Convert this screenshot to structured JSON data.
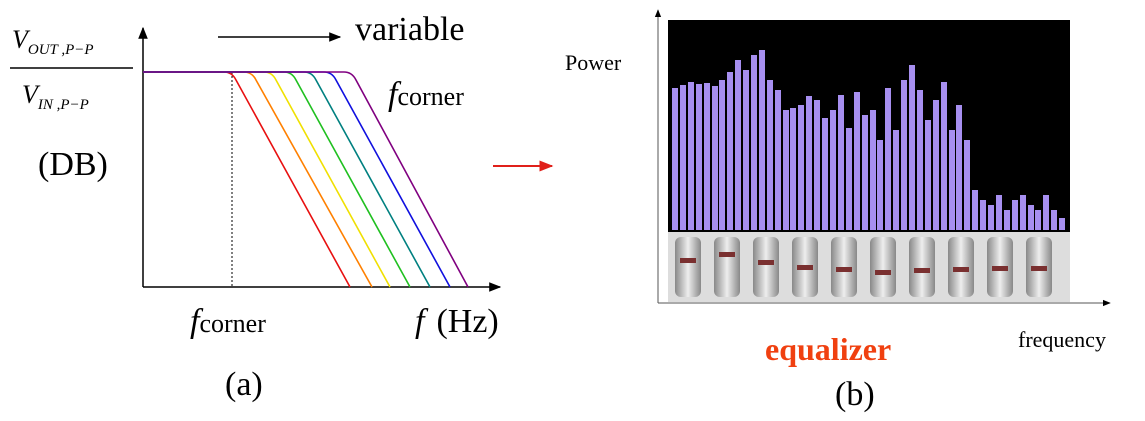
{
  "left": {
    "numerator": {
      "main": "V",
      "sub": "OUT ,P−P"
    },
    "denominator": {
      "main": "V",
      "sub": "IN ,P−P"
    },
    "y_unit": "(DB)",
    "variable_label": "variable",
    "variable_f": {
      "main": "f",
      "sub": "corner"
    },
    "corner_label": {
      "main": "f",
      "sub": "corner"
    },
    "x_label": {
      "main": "f",
      "unit": "(Hz)"
    },
    "caption": "(a)"
  },
  "right": {
    "y_label": "Power",
    "x_label": "frequency",
    "title": "equalizer",
    "caption": "(b)"
  }
}
